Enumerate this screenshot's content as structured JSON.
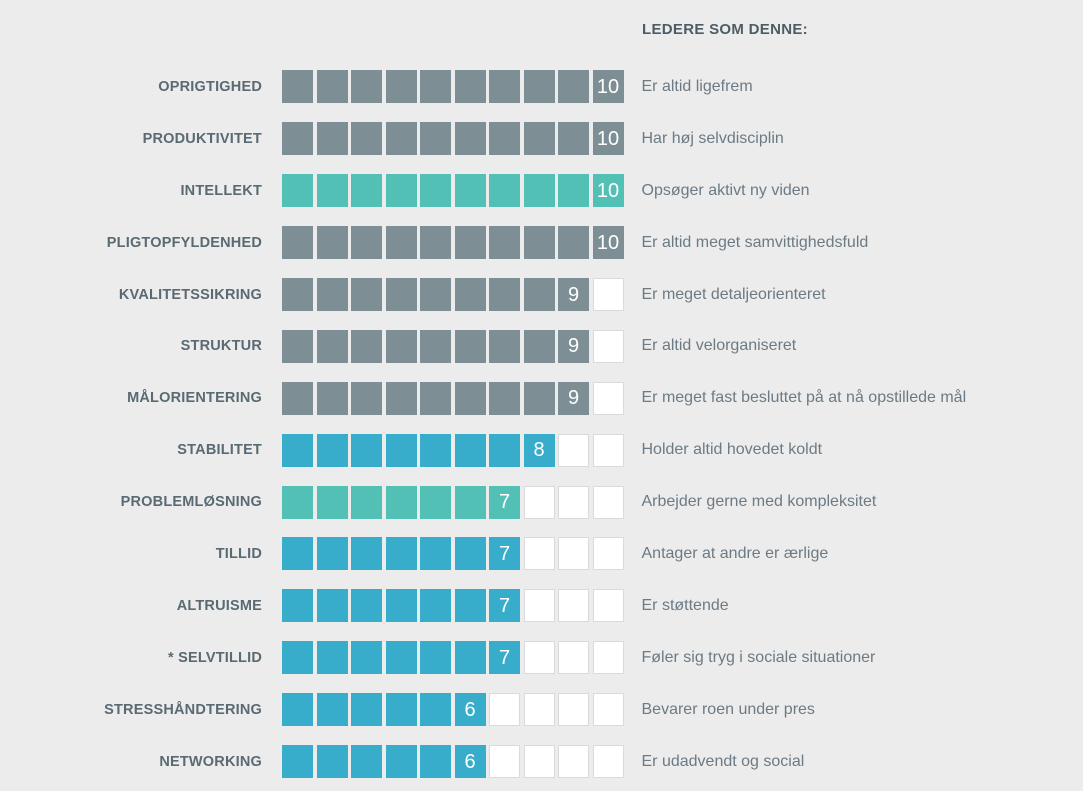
{
  "header": {
    "title": "LEDERE SOM DENNE:"
  },
  "colors": {
    "background": "#ECECEC",
    "gray_square": "#7D8F94",
    "teal_square": "#52C0B5",
    "blue_square": "#38ACCB",
    "empty_square_fill": "#FFFFFF",
    "empty_square_border": "#DADADA",
    "number_text": "#FFFFFF"
  },
  "chart_data": {
    "type": "bar",
    "title": "LEDERE SOM DENNE:",
    "xlabel": "",
    "ylabel": "",
    "scale_min": 1,
    "scale_max": 10,
    "legend_position": "none",
    "grid": false,
    "categories": [
      "OPRIGTIGHED",
      "PRODUKTIVITET",
      "INTELLEKT",
      "PLIGTOPFYLDENHED",
      "KVALITETSSIKRING",
      "STRUKTUR",
      "MÅLORIENTERING",
      "STABILITET",
      "PROBLEMLØSNING",
      "TILLID",
      "ALTRUISME",
      "* SELVTILLID",
      "STRESSHÅNDTERING",
      "NETWORKING"
    ],
    "values": [
      10,
      10,
      10,
      10,
      9,
      9,
      9,
      8,
      7,
      7,
      7,
      7,
      6,
      6
    ],
    "rows": [
      {
        "label": "OPRIGTIGHED",
        "value": 10,
        "color": "gray",
        "description": "Er altid ligefrem"
      },
      {
        "label": "PRODUKTIVITET",
        "value": 10,
        "color": "gray",
        "description": "Har høj selvdisciplin"
      },
      {
        "label": "INTELLEKT",
        "value": 10,
        "color": "teal",
        "description": "Opsøger aktivt ny viden"
      },
      {
        "label": "PLIGTOPFYLDENHED",
        "value": 10,
        "color": "gray",
        "description": "Er altid meget samvittighedsfuld"
      },
      {
        "label": "KVALITETSSIKRING",
        "value": 9,
        "color": "gray",
        "description": "Er meget detaljeorienteret"
      },
      {
        "label": "STRUKTUR",
        "value": 9,
        "color": "gray",
        "description": "Er altid velorganiseret"
      },
      {
        "label": "MÅLORIENTERING",
        "value": 9,
        "color": "gray",
        "description": "Er meget fast besluttet på at nå opstillede mål"
      },
      {
        "label": "STABILITET",
        "value": 8,
        "color": "blue",
        "description": "Holder altid hovedet koldt"
      },
      {
        "label": "PROBLEMLØSNING",
        "value": 7,
        "color": "teal",
        "description": "Arbejder gerne med kompleksitet"
      },
      {
        "label": "TILLID",
        "value": 7,
        "color": "blue",
        "description": "Antager at andre er ærlige"
      },
      {
        "label": "ALTRUISME",
        "value": 7,
        "color": "blue",
        "description": "Er støttende"
      },
      {
        "label": "* SELVTILLID",
        "value": 7,
        "color": "blue",
        "description": "Føler sig tryg i sociale situationer"
      },
      {
        "label": "STRESSHÅNDTERING",
        "value": 6,
        "color": "blue",
        "description": "Bevarer roen under pres"
      },
      {
        "label": "NETWORKING",
        "value": 6,
        "color": "blue",
        "description": "Er udadvendt og social"
      }
    ]
  }
}
